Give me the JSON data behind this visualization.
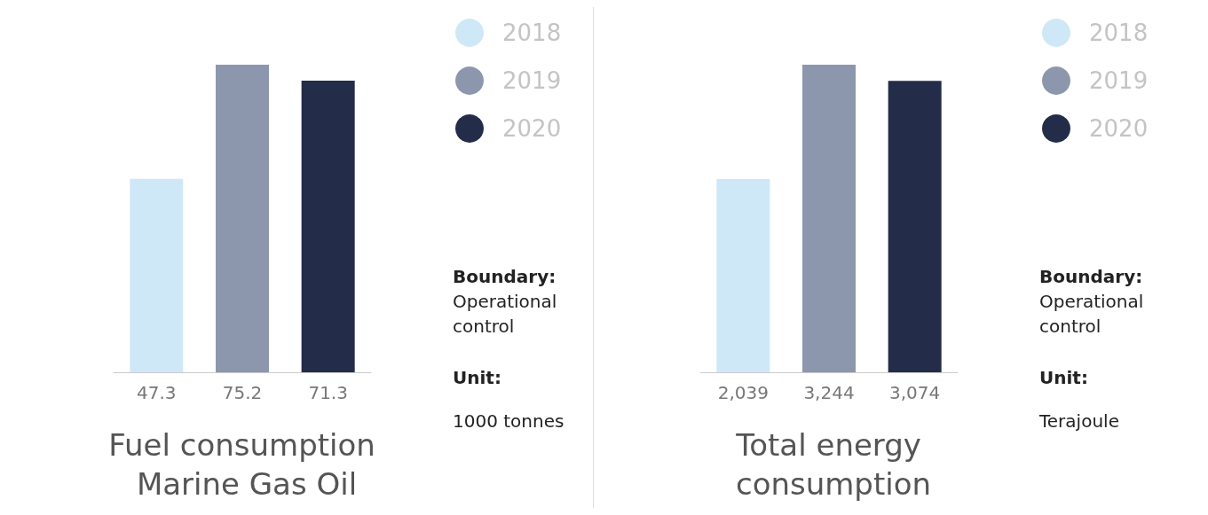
{
  "chart_data": [
    {
      "type": "bar",
      "title": "Fuel consumption Marine Gas Oil",
      "categories": [
        null,
        null,
        null
      ],
      "stacked": true,
      "series": [
        {
          "name": "2018",
          "color": "#cfe8f8",
          "values": [
            47.3,
            null,
            null
          ]
        },
        {
          "name": "2019",
          "color": "#8c97ae",
          "values": [
            null,
            75.2,
            null
          ]
        },
        {
          "name": "2020",
          "color": "#232c48",
          "values": [
            null,
            null,
            71.3
          ]
        }
      ],
      "data_labels": true,
      "legend": "top right",
      "annotations": [
        "Boundary:",
        "Operational control",
        "Unit:",
        "1000 tonnes"
      ]
    },
    {
      "type": "bar",
      "title": "Total energy consumption",
      "categories": [
        null,
        null,
        null
      ],
      "stacked": true,
      "series": [
        {
          "name": "2018",
          "color": "#cfe8f8",
          "values": [
            2039,
            null,
            null
          ],
          "value_labels": [
            "2,039",
            null,
            null
          ]
        },
        {
          "name": "2019",
          "color": "#8c97ae",
          "values": [
            null,
            3244,
            null
          ],
          "value_labels": [
            null,
            "3,244",
            null
          ]
        },
        {
          "name": "2020",
          "color": "#232c48",
          "values": [
            null,
            null,
            3074
          ],
          "value_labels": [
            null,
            null,
            "3,074"
          ]
        }
      ],
      "legend": "top right",
      "annotations": [
        "Boundary:",
        "Operational control",
        "Unit:",
        "Terajoule"
      ]
    }
  ]
}
